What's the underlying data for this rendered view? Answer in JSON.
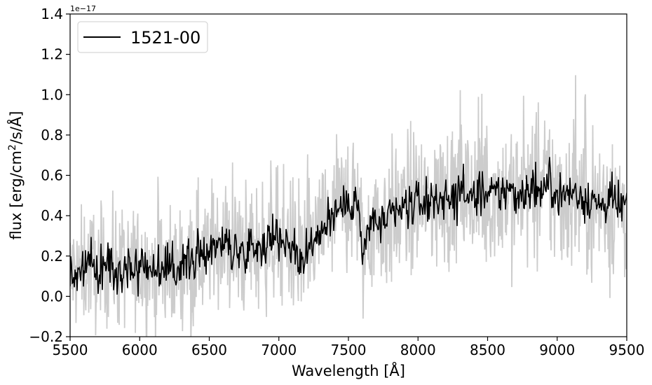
{
  "chart_data": {
    "type": "line",
    "title": "",
    "xlabel": "Wavelength [Å]",
    "ylabel_prefix": "flux [erg/cm",
    "ylabel_sup": "2",
    "ylabel_suffix": "/s/Å]",
    "offset_text": "1e−17",
    "xlim": [
      5500,
      9500
    ],
    "ylim": [
      -0.2,
      1.4
    ],
    "x_ticks": [
      5500,
      6000,
      6500,
      7000,
      7500,
      8000,
      8500,
      9000,
      9500
    ],
    "y_ticks": [
      -0.2,
      0.0,
      0.2,
      0.4,
      0.6,
      0.8,
      1.0,
      1.2,
      1.4
    ],
    "x_tick_labels": [
      "5500",
      "6000",
      "6500",
      "7000",
      "7500",
      "8000",
      "8500",
      "9000",
      "9500"
    ],
    "y_tick_labels": [
      "−0.2",
      "0.0",
      "0.2",
      "0.4",
      "0.6",
      "0.8",
      "1.0",
      "1.2",
      "1.4"
    ],
    "legend": {
      "placement": "top-left",
      "entries": [
        {
          "label": "1521-00",
          "color": "#000000"
        }
      ]
    },
    "grid": false,
    "series": [
      {
        "name": "1521-00",
        "role": "smoothed",
        "color": "#000000",
        "x": [
          5500,
          5550,
          5600,
          5650,
          5700,
          5750,
          5800,
          5850,
          5900,
          5950,
          6000,
          6050,
          6100,
          6150,
          6200,
          6250,
          6300,
          6350,
          6400,
          6450,
          6500,
          6550,
          6600,
          6650,
          6700,
          6750,
          6800,
          6850,
          6900,
          6950,
          7000,
          7050,
          7100,
          7150,
          7200,
          7250,
          7300,
          7350,
          7400,
          7450,
          7500,
          7550,
          7580,
          7600,
          7620,
          7650,
          7700,
          7750,
          7800,
          7850,
          7900,
          7950,
          8000,
          8050,
          8100,
          8150,
          8200,
          8250,
          8300,
          8350,
          8400,
          8450,
          8500,
          8550,
          8600,
          8650,
          8700,
          8750,
          8800,
          8850,
          8900,
          8950,
          9000,
          9050,
          9100,
          9150,
          9200,
          9250,
          9300,
          9350,
          9400,
          9450,
          9500
        ],
        "y": [
          0.12,
          0.1,
          0.14,
          0.16,
          0.12,
          0.15,
          0.17,
          0.14,
          0.15,
          0.13,
          0.15,
          0.16,
          0.13,
          0.15,
          0.12,
          0.14,
          0.16,
          0.18,
          0.2,
          0.21,
          0.24,
          0.27,
          0.25,
          0.24,
          0.22,
          0.23,
          0.25,
          0.24,
          0.27,
          0.29,
          0.3,
          0.28,
          0.24,
          0.18,
          0.2,
          0.27,
          0.33,
          0.38,
          0.41,
          0.44,
          0.46,
          0.49,
          0.4,
          0.15,
          0.26,
          0.34,
          0.38,
          0.36,
          0.39,
          0.41,
          0.43,
          0.46,
          0.47,
          0.45,
          0.48,
          0.5,
          0.47,
          0.49,
          0.52,
          0.5,
          0.48,
          0.51,
          0.49,
          0.5,
          0.52,
          0.53,
          0.5,
          0.52,
          0.54,
          0.51,
          0.53,
          0.55,
          0.52,
          0.5,
          0.52,
          0.5,
          0.49,
          0.48,
          0.45,
          0.46,
          0.47,
          0.44,
          0.45
        ]
      },
      {
        "name": "",
        "role": "raw",
        "color": "#cccccc",
        "x": [
          5500,
          5550,
          5600,
          5650,
          5700,
          5750,
          5800,
          5850,
          5900,
          5950,
          6000,
          6050,
          6100,
          6150,
          6200,
          6250,
          6300,
          6350,
          6400,
          6450,
          6500,
          6550,
          6600,
          6650,
          6700,
          6750,
          6800,
          6850,
          6900,
          6950,
          7000,
          7050,
          7100,
          7150,
          7200,
          7250,
          7300,
          7350,
          7400,
          7450,
          7500,
          7550,
          7580,
          7600,
          7620,
          7650,
          7700,
          7750,
          7800,
          7850,
          7900,
          7950,
          8000,
          8050,
          8100,
          8150,
          8200,
          8250,
          8300,
          8350,
          8400,
          8450,
          8500,
          8550,
          8600,
          8650,
          8700,
          8750,
          8800,
          8850,
          8900,
          8950,
          9000,
          9050,
          9100,
          9150,
          9200,
          9250,
          9300,
          9350,
          9400,
          9450,
          9500
        ],
        "y": [
          0.12,
          0.1,
          0.14,
          0.16,
          0.12,
          0.15,
          0.17,
          0.14,
          0.15,
          0.13,
          0.15,
          0.16,
          0.13,
          0.15,
          0.12,
          0.14,
          0.16,
          0.18,
          0.2,
          0.21,
          0.24,
          0.27,
          0.25,
          0.24,
          0.22,
          0.23,
          0.25,
          0.24,
          0.27,
          0.29,
          0.3,
          0.28,
          0.24,
          0.18,
          0.2,
          0.27,
          0.33,
          0.38,
          0.41,
          0.44,
          0.46,
          0.49,
          0.4,
          0.15,
          0.26,
          0.34,
          0.38,
          0.36,
          0.39,
          0.41,
          0.43,
          0.46,
          0.47,
          0.45,
          0.48,
          0.5,
          0.47,
          0.49,
          0.52,
          0.5,
          0.48,
          0.51,
          0.49,
          0.5,
          0.52,
          0.53,
          0.5,
          0.52,
          0.54,
          0.51,
          0.53,
          0.55,
          0.52,
          0.5,
          0.52,
          0.5,
          0.49,
          0.48,
          0.45,
          0.46,
          0.47,
          0.44,
          0.45
        ],
        "spread": 0.16
      }
    ]
  }
}
